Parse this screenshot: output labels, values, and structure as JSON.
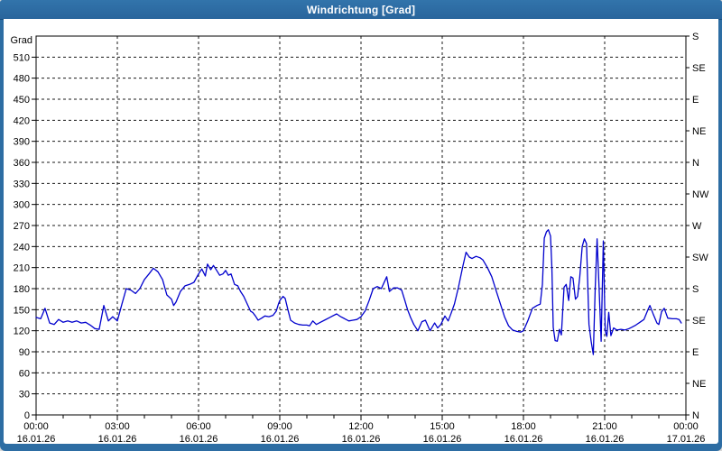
{
  "window": {
    "title": "Windrichtung [Grad]"
  },
  "colors": {
    "titlebar_blue": "#2d6da3",
    "frame_border_blue": "#2d6da3",
    "title_text": "#ffffff",
    "plot_background": "#ffffff",
    "axis_black": "#000000",
    "grid_dash": "#1a1a1a",
    "line_blue": "#0000cd"
  },
  "chart_data": {
    "type": "line",
    "title": "Windrichtung [Grad]",
    "y_axis": {
      "title": "Grad",
      "min": 0,
      "max": 540,
      "step": 30,
      "labeled_ticks": [
        0,
        30,
        60,
        90,
        120,
        150,
        180,
        210,
        240,
        270,
        300,
        330,
        360,
        390,
        420,
        450,
        480,
        510
      ]
    },
    "right_axis_ticks": [
      {
        "value": 0,
        "label": "N"
      },
      {
        "value": 45,
        "label": "NE"
      },
      {
        "value": 90,
        "label": "E"
      },
      {
        "value": 135,
        "label": "SE"
      },
      {
        "value": 180,
        "label": "S"
      },
      {
        "value": 225,
        "label": "SW"
      },
      {
        "value": 270,
        "label": "W"
      },
      {
        "value": 315,
        "label": "NW"
      },
      {
        "value": 360,
        "label": "N"
      },
      {
        "value": 405,
        "label": "NE"
      },
      {
        "value": 450,
        "label": "E"
      },
      {
        "value": 495,
        "label": "SE"
      },
      {
        "value": 540,
        "label": "S"
      }
    ],
    "x_axis": {
      "min_hour": 0,
      "max_hour": 24,
      "minor_tick_hours": 1,
      "major_tick_hours": 3,
      "grid_hours": [
        3,
        6,
        9,
        12,
        15,
        18,
        21
      ],
      "ticks": [
        {
          "hour": 0,
          "time": "00:00",
          "date": "16.01.26"
        },
        {
          "hour": 3,
          "time": "03:00",
          "date": "16.01.26"
        },
        {
          "hour": 6,
          "time": "06:00",
          "date": "16.01.26"
        },
        {
          "hour": 9,
          "time": "09:00",
          "date": "16.01.26"
        },
        {
          "hour": 12,
          "time": "12:00",
          "date": "16.01.26"
        },
        {
          "hour": 15,
          "time": "15:00",
          "date": "16.01.26"
        },
        {
          "hour": 18,
          "time": "18:00",
          "date": "16.01.26"
        },
        {
          "hour": 21,
          "time": "21:00",
          "date": "16.01.26"
        },
        {
          "hour": 24,
          "time": "00:00",
          "date": "17.01.26"
        }
      ]
    },
    "series": [
      {
        "name": "Windrichtung",
        "points": [
          [
            0,
            139
          ],
          [
            0.17,
            137
          ],
          [
            0.33,
            152
          ],
          [
            0.5,
            131
          ],
          [
            0.67,
            129
          ],
          [
            0.83,
            136
          ],
          [
            1,
            132
          ],
          [
            1.17,
            134
          ],
          [
            1.33,
            132
          ],
          [
            1.5,
            134
          ],
          [
            1.67,
            131
          ],
          [
            1.83,
            132
          ],
          [
            2,
            128
          ],
          [
            2.17,
            123
          ],
          [
            2.33,
            122
          ],
          [
            2.5,
            156
          ],
          [
            2.67,
            134
          ],
          [
            2.83,
            140
          ],
          [
            3,
            134
          ],
          [
            3.17,
            158
          ],
          [
            3.33,
            180
          ],
          [
            3.5,
            178
          ],
          [
            3.67,
            173
          ],
          [
            3.83,
            180
          ],
          [
            4,
            193
          ],
          [
            4.17,
            201
          ],
          [
            4.33,
            209
          ],
          [
            4.5,
            204
          ],
          [
            4.67,
            193
          ],
          [
            4.83,
            171
          ],
          [
            5,
            165
          ],
          [
            5.08,
            156
          ],
          [
            5.17,
            161
          ],
          [
            5.33,
            176
          ],
          [
            5.5,
            184
          ],
          [
            5.67,
            186
          ],
          [
            5.83,
            189
          ],
          [
            6,
            201
          ],
          [
            6.12,
            208
          ],
          [
            6.25,
            198
          ],
          [
            6.33,
            215
          ],
          [
            6.45,
            207
          ],
          [
            6.55,
            213
          ],
          [
            6.67,
            206
          ],
          [
            6.78,
            199
          ],
          [
            6.9,
            201
          ],
          [
            7,
            206
          ],
          [
            7.1,
            199
          ],
          [
            7.2,
            201
          ],
          [
            7.33,
            186
          ],
          [
            7.45,
            184
          ],
          [
            7.55,
            176
          ],
          [
            7.67,
            169
          ],
          [
            7.8,
            158
          ],
          [
            7.92,
            148
          ],
          [
            8,
            146
          ],
          [
            8.1,
            141
          ],
          [
            8.2,
            135
          ],
          [
            8.33,
            138
          ],
          [
            8.45,
            141
          ],
          [
            8.6,
            140
          ],
          [
            8.75,
            142
          ],
          [
            8.87,
            148
          ],
          [
            8.95,
            158
          ],
          [
            9,
            163
          ],
          [
            9.12,
            169
          ],
          [
            9.2,
            166
          ],
          [
            9.3,
            150
          ],
          [
            9.4,
            135
          ],
          [
            9.55,
            131
          ],
          [
            9.7,
            129
          ],
          [
            9.85,
            128
          ],
          [
            10,
            128
          ],
          [
            10.1,
            127
          ],
          [
            10.22,
            134
          ],
          [
            10.35,
            129
          ],
          [
            10.5,
            132
          ],
          [
            10.65,
            135
          ],
          [
            10.8,
            138
          ],
          [
            10.95,
            141
          ],
          [
            11.1,
            144
          ],
          [
            11.25,
            140
          ],
          [
            11.4,
            137
          ],
          [
            11.55,
            134
          ],
          [
            11.7,
            135
          ],
          [
            11.85,
            136
          ],
          [
            12,
            140
          ],
          [
            12.15,
            148
          ],
          [
            12.3,
            163
          ],
          [
            12.45,
            180
          ],
          [
            12.6,
            183
          ],
          [
            12.75,
            180
          ],
          [
            12.95,
            197
          ],
          [
            13.05,
            176
          ],
          [
            13.2,
            181
          ],
          [
            13.35,
            181
          ],
          [
            13.5,
            178
          ],
          [
            13.62,
            163
          ],
          [
            13.72,
            150
          ],
          [
            13.83,
            139
          ],
          [
            13.95,
            129
          ],
          [
            14.1,
            120
          ],
          [
            14.25,
            133
          ],
          [
            14.38,
            135
          ],
          [
            14.55,
            120
          ],
          [
            14.72,
            131
          ],
          [
            14.83,
            124
          ],
          [
            14.95,
            129
          ],
          [
            15.1,
            141
          ],
          [
            15.22,
            134
          ],
          [
            15.33,
            145
          ],
          [
            15.45,
            158
          ],
          [
            15.6,
            182
          ],
          [
            15.75,
            210
          ],
          [
            15.88,
            232
          ],
          [
            16,
            225
          ],
          [
            16.1,
            223
          ],
          [
            16.25,
            226
          ],
          [
            16.4,
            224
          ],
          [
            16.5,
            221
          ],
          [
            16.67,
            210
          ],
          [
            16.83,
            197
          ],
          [
            17,
            176
          ],
          [
            17.15,
            158
          ],
          [
            17.3,
            140
          ],
          [
            17.45,
            127
          ],
          [
            17.6,
            121
          ],
          [
            17.75,
            119
          ],
          [
            17.9,
            118
          ],
          [
            18,
            120
          ],
          [
            18.17,
            135
          ],
          [
            18.33,
            152
          ],
          [
            18.5,
            156
          ],
          [
            18.62,
            158
          ],
          [
            18.7,
            186
          ],
          [
            18.77,
            252
          ],
          [
            18.85,
            261
          ],
          [
            18.92,
            264
          ],
          [
            19,
            255
          ],
          [
            19.05,
            210
          ],
          [
            19.1,
            125
          ],
          [
            19.17,
            106
          ],
          [
            19.25,
            105
          ],
          [
            19.33,
            122
          ],
          [
            19.4,
            114
          ],
          [
            19.5,
            182
          ],
          [
            19.58,
            186
          ],
          [
            19.67,
            163
          ],
          [
            19.75,
            197
          ],
          [
            19.83,
            195
          ],
          [
            19.92,
            165
          ],
          [
            20,
            169
          ],
          [
            20.08,
            197
          ],
          [
            20.17,
            240
          ],
          [
            20.25,
            251
          ],
          [
            20.33,
            244
          ],
          [
            20.42,
            129
          ],
          [
            20.5,
            105
          ],
          [
            20.58,
            86
          ],
          [
            20.65,
            180
          ],
          [
            20.72,
            251
          ],
          [
            20.8,
            175
          ],
          [
            20.87,
            105
          ],
          [
            20.95,
            248
          ],
          [
            21.02,
            120
          ],
          [
            21.08,
            112
          ],
          [
            21.15,
            146
          ],
          [
            21.23,
            113
          ],
          [
            21.33,
            124
          ],
          [
            21.45,
            121
          ],
          [
            21.6,
            122
          ],
          [
            21.75,
            121
          ],
          [
            21.9,
            123
          ],
          [
            22,
            125
          ],
          [
            22.15,
            128
          ],
          [
            22.3,
            132
          ],
          [
            22.45,
            136
          ],
          [
            22.6,
            150
          ],
          [
            22.67,
            156
          ],
          [
            22.8,
            143
          ],
          [
            22.93,
            131
          ],
          [
            23,
            129
          ],
          [
            23.1,
            147
          ],
          [
            23.2,
            152
          ],
          [
            23.33,
            138
          ],
          [
            23.5,
            137
          ],
          [
            23.65,
            137
          ],
          [
            23.75,
            136
          ],
          [
            23.83,
            131
          ]
        ]
      }
    ]
  }
}
